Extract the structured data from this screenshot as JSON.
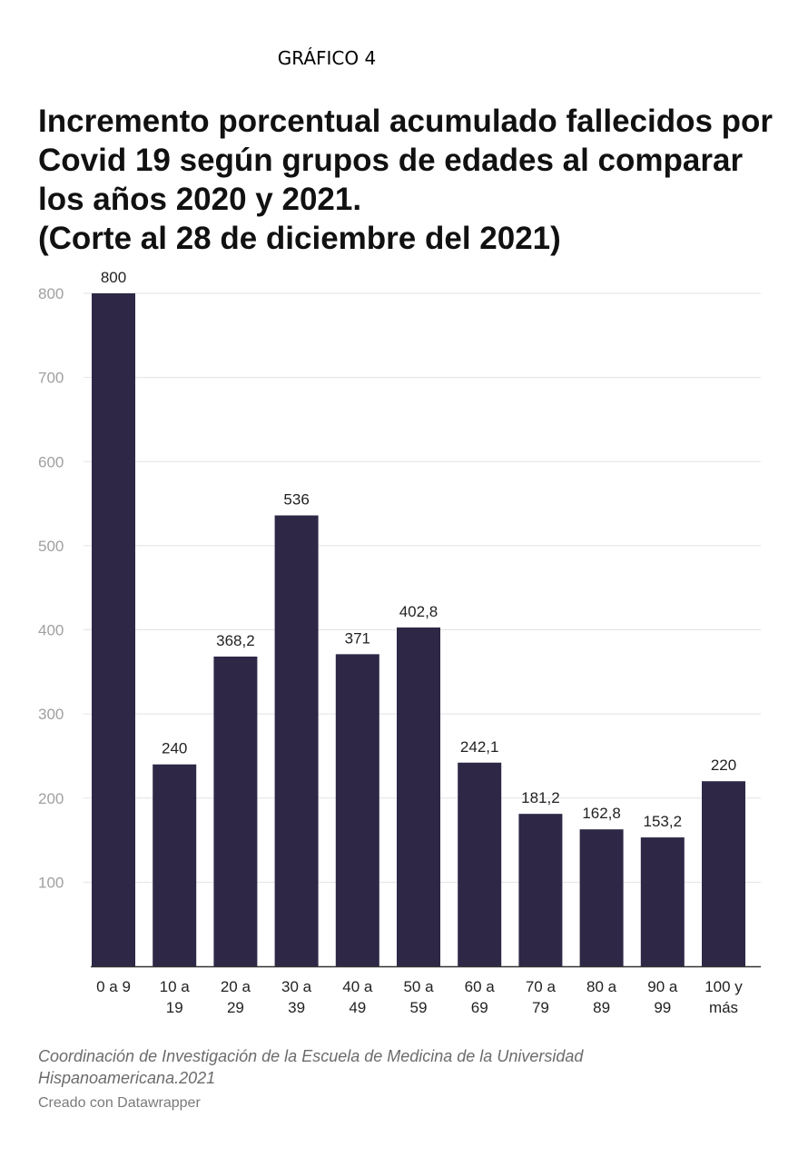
{
  "header_label": "GRÁFICO 4",
  "title_lines": [
    "Incremento porcentual acumulado fallecidos por",
    "Covid 19 según grupos de edades al comparar",
    "los años  2020 y 2021.",
    "(Corte al 28 de diciembre del 2021)"
  ],
  "footer": {
    "source_lines": [
      "Coordinación de Investigación de la Escuela de Medicina de la Universidad",
      "Hispanoamericana.2021"
    ],
    "credit": "Creado con Datawrapper"
  },
  "colors": {
    "bar": "#2e2846",
    "grid": "#e2e2e2",
    "axis_tick": "#a0a0a0",
    "label": "#222222"
  },
  "chart_data": {
    "type": "bar",
    "categories": [
      [
        "0 a 9"
      ],
      [
        "10 a",
        "19"
      ],
      [
        "20 a",
        "29"
      ],
      [
        "30 a",
        "39"
      ],
      [
        "40 a",
        "49"
      ],
      [
        "50 a",
        "59"
      ],
      [
        "60 a",
        "69"
      ],
      [
        "70 a",
        "79"
      ],
      [
        "80 a",
        "89"
      ],
      [
        "90 a",
        "99"
      ],
      [
        "100 y",
        "más"
      ]
    ],
    "values": [
      800,
      240,
      368.2,
      536,
      371,
      402.8,
      242.1,
      181.2,
      162.8,
      153.2,
      220
    ],
    "value_labels": [
      "800",
      "240",
      "368,2",
      "536",
      "371",
      "402,8",
      "242,1",
      "181,2",
      "162,8",
      "153,2",
      "220"
    ],
    "y_ticks": [
      100,
      200,
      300,
      400,
      500,
      600,
      700,
      800
    ],
    "ylim": [
      0,
      800
    ],
    "grid": true,
    "legend": "none",
    "xlabel": "",
    "ylabel": ""
  }
}
